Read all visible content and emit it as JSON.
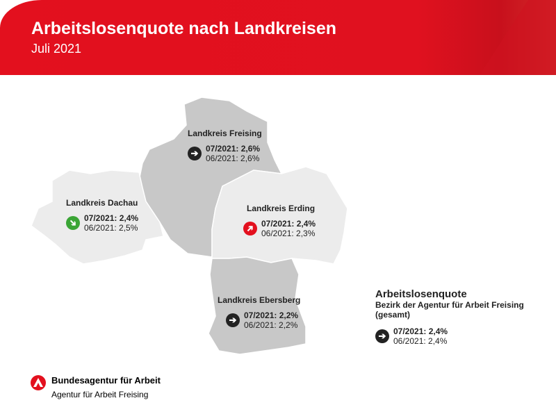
{
  "header": {
    "title": "Arbeitslosenquote nach Landkreisen",
    "subtitle": "Juli 2021"
  },
  "colors": {
    "brand": "#e3101e",
    "region_light": "#ececec",
    "region_dark": "#c8c8c8",
    "up": "#e3101e",
    "down": "#3aa535",
    "same": "#222222"
  },
  "regions": [
    {
      "name": "Landkreis Freising",
      "current": "07/2021: 2,6%",
      "previous": "06/2021: 2,6%",
      "trend": "same",
      "icon": "arrow-right-icon"
    },
    {
      "name": "Landkreis Dachau",
      "current": "07/2021: 2,4%",
      "previous": "06/2021: 2,5%",
      "trend": "down",
      "icon": "arrow-down-right-icon"
    },
    {
      "name": "Landkreis Erding",
      "current": "07/2021: 2,4%",
      "previous": "06/2021: 2,3%",
      "trend": "up",
      "icon": "arrow-up-right-icon"
    },
    {
      "name": "Landkreis Ebersberg",
      "current": "07/2021: 2,2%",
      "previous": "06/2021: 2,2%",
      "trend": "same",
      "icon": "arrow-right-icon"
    }
  ],
  "legend": {
    "title": "Arbeitslosenquote",
    "subtitle": "Bezirk der Agentur für Arbeit Freising (gesamt)",
    "current": "07/2021: 2,4%",
    "previous": "06/2021: 2,4%",
    "trend": "same"
  },
  "footer": {
    "org": "Bundesagentur für Arbeit",
    "office": "Agentur für Arbeit Freising"
  }
}
